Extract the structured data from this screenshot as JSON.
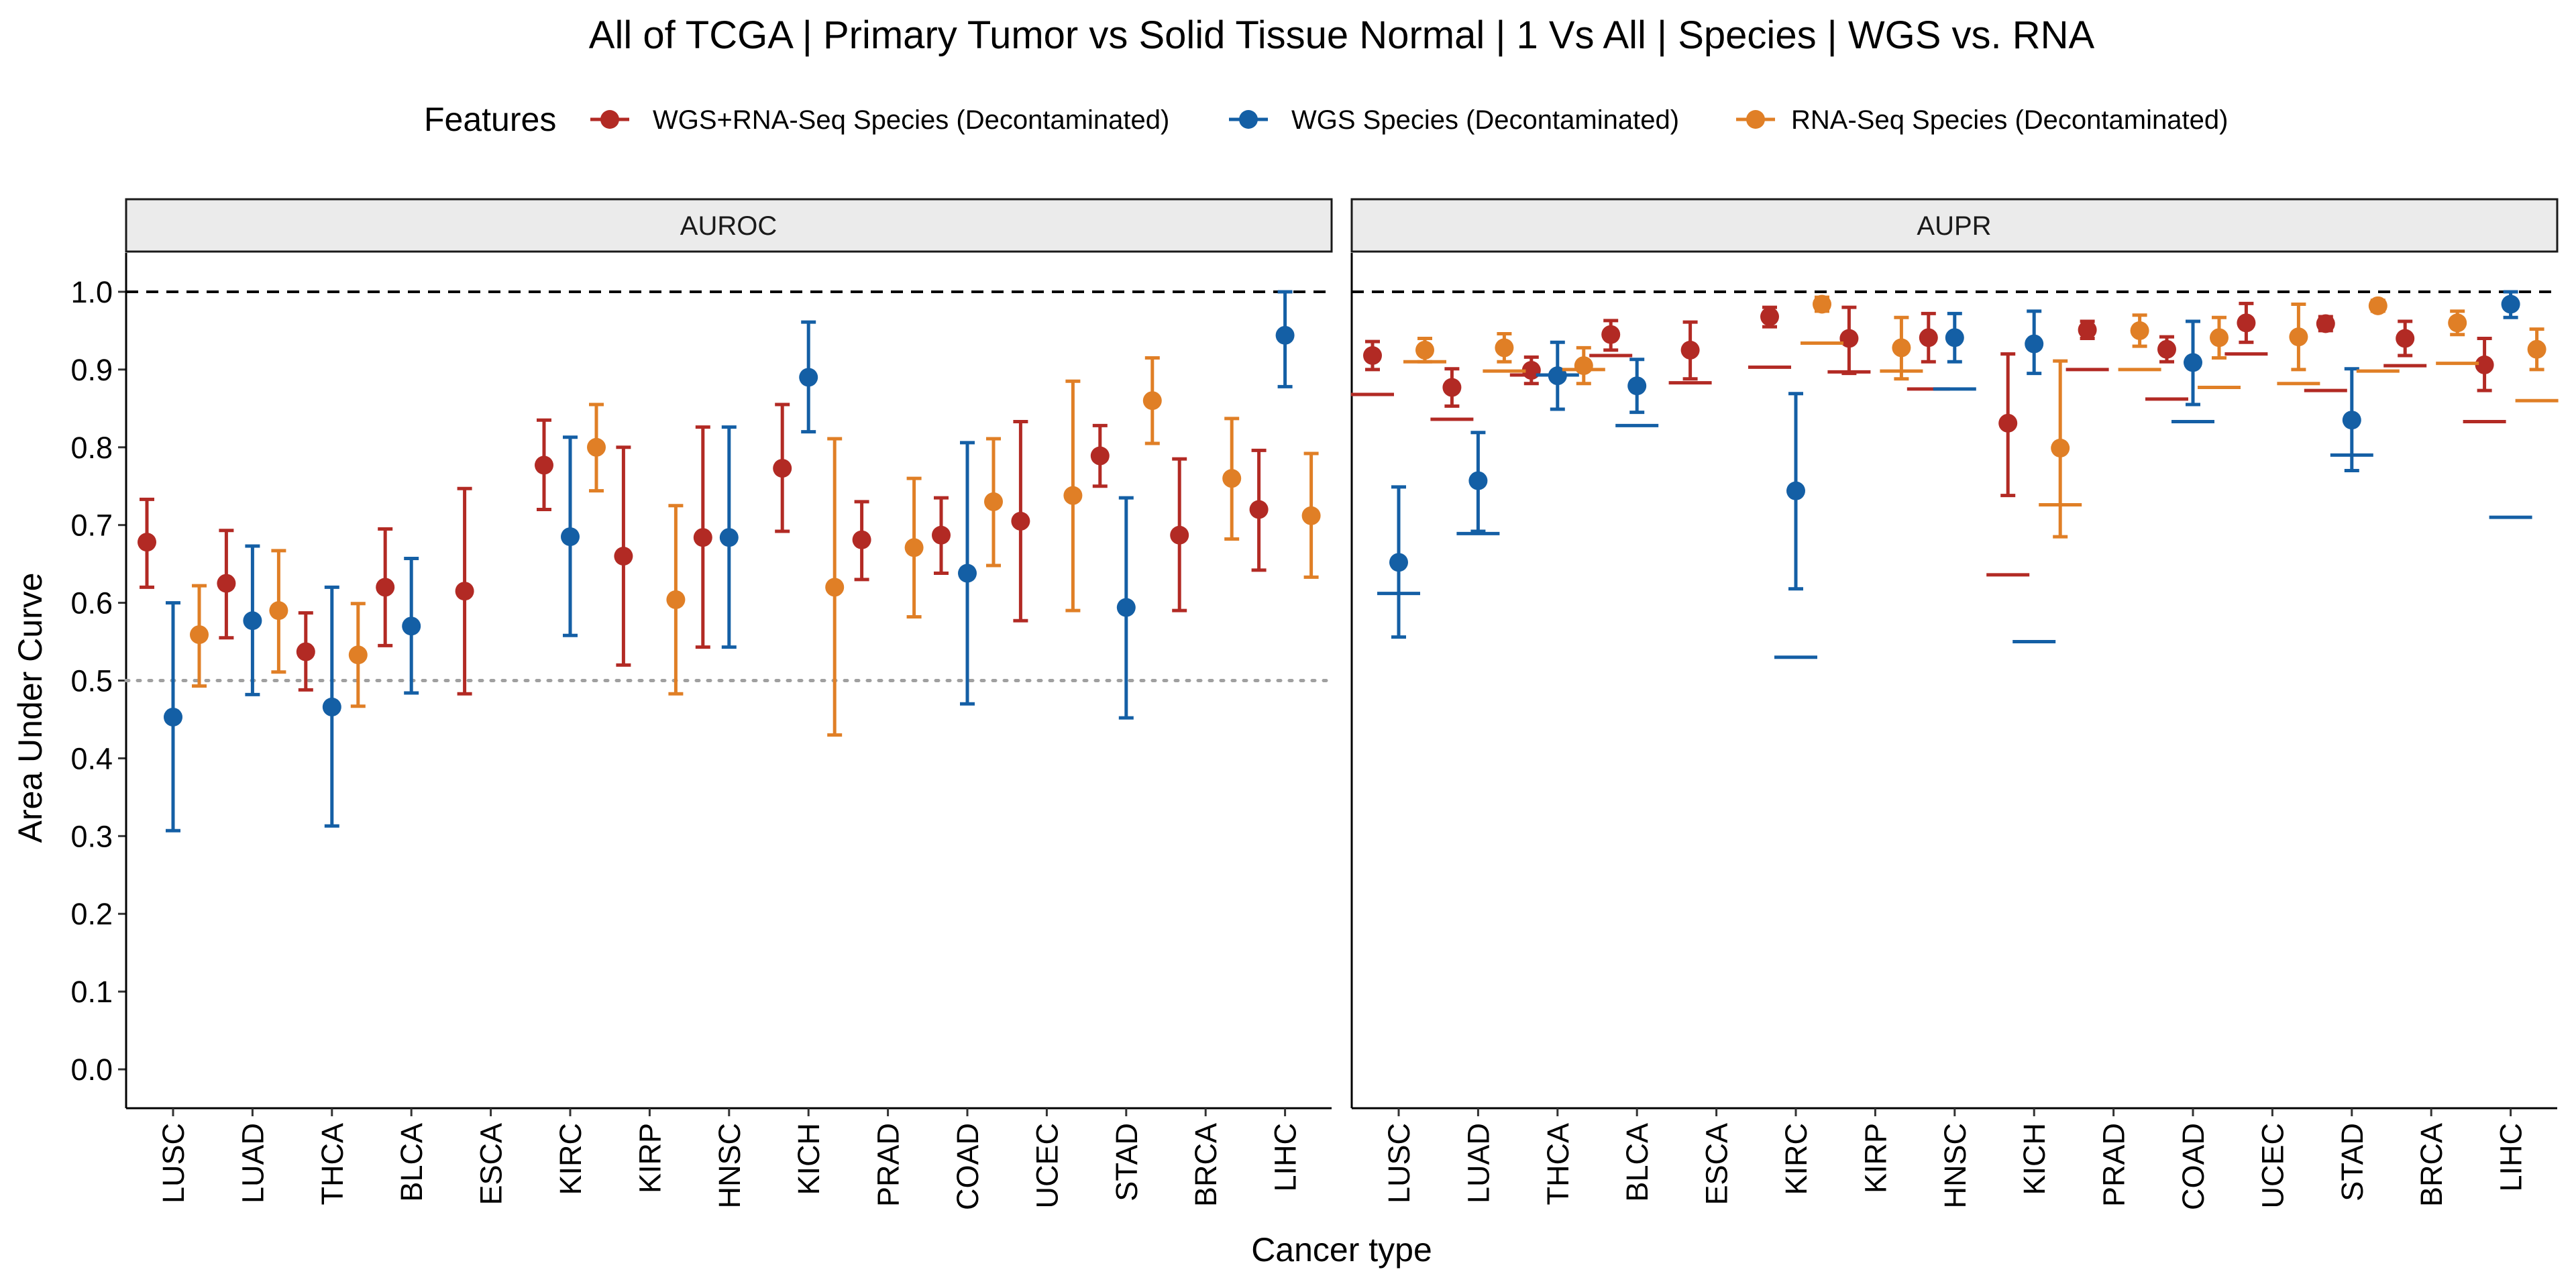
{
  "title": "All of TCGA | Primary Tumor vs Solid Tissue Normal | 1 Vs All | Species | WGS vs. RNA",
  "legend": {
    "title": "Features",
    "items": [
      {
        "label": "WGS+RNA-Seq Species (Decontaminated)",
        "color": "#b22a24"
      },
      {
        "label": "WGS Species (Decontaminated)",
        "color": "#145fa5"
      },
      {
        "label": "RNA-Seq Species (Decontaminated)",
        "color": "#e07f26"
      }
    ]
  },
  "chart_data": {
    "type": "scatter",
    "xlabel": "Cancer type",
    "ylabel": "Area Under Curve",
    "ylim": [
      -0.05,
      1.05
    ],
    "yticks": [
      "0.0",
      "0.1",
      "0.2",
      "0.3",
      "0.4",
      "0.5",
      "0.6",
      "0.7",
      "0.8",
      "0.9",
      "1.0"
    ],
    "categories": [
      "LUSC",
      "LUAD",
      "THCA",
      "BLCA",
      "ESCA",
      "KIRC",
      "KIRP",
      "HNSC",
      "KICH",
      "PRAD",
      "COAD",
      "UCEC",
      "STAD",
      "BRCA",
      "LIHC"
    ],
    "reference_lines": [
      {
        "panel": "both",
        "y": 1.0,
        "style": "dashed"
      },
      {
        "panel": "AUROC",
        "y": 0.5,
        "style": "dotted"
      }
    ],
    "panels": [
      {
        "name": "AUROC",
        "series": [
          {
            "name": "WGS+RNA-Seq Species (Decontaminated)",
            "color": "#b22a24",
            "values": [
              0.678,
              0.625,
              0.537,
              0.62,
              0.615,
              0.777,
              0.66,
              0.684,
              0.773,
              0.681,
              0.687,
              0.705,
              0.789,
              0.687,
              0.72
            ],
            "lower": [
              0.62,
              0.555,
              0.488,
              0.545,
              0.483,
              0.72,
              0.52,
              0.543,
              0.692,
              0.63,
              0.638,
              0.577,
              0.75,
              0.59,
              0.642
            ],
            "upper": [
              0.733,
              0.693,
              0.587,
              0.695,
              0.747,
              0.835,
              0.8,
              0.826,
              0.855,
              0.73,
              0.735,
              0.833,
              0.828,
              0.785,
              0.796
            ]
          },
          {
            "name": "WGS Species (Decontaminated)",
            "color": "#145fa5",
            "values": [
              0.453,
              0.577,
              0.466,
              0.57,
              null,
              0.685,
              null,
              0.684,
              0.89,
              null,
              0.638,
              null,
              0.594,
              null,
              0.944
            ],
            "lower": [
              0.307,
              0.482,
              0.313,
              0.484,
              null,
              0.558,
              null,
              0.543,
              0.82,
              null,
              0.47,
              null,
              0.452,
              null,
              0.878
            ],
            "upper": [
              0.6,
              0.673,
              0.62,
              0.657,
              null,
              0.813,
              null,
              0.826,
              0.961,
              null,
              0.806,
              null,
              0.735,
              null,
              1.0
            ]
          },
          {
            "name": "RNA-Seq Species (Decontaminated)",
            "color": "#e07f26",
            "values": [
              0.559,
              0.59,
              0.533,
              null,
              null,
              0.8,
              0.604,
              null,
              0.62,
              0.671,
              0.73,
              0.738,
              0.86,
              0.76,
              0.712
            ],
            "lower": [
              0.493,
              0.511,
              0.467,
              null,
              null,
              0.744,
              0.483,
              null,
              0.43,
              0.582,
              0.648,
              0.59,
              0.805,
              0.682,
              0.633
            ],
            "upper": [
              0.622,
              0.667,
              0.599,
              null,
              null,
              0.855,
              0.725,
              null,
              0.811,
              0.76,
              0.811,
              0.885,
              0.915,
              0.837,
              0.792
            ]
          }
        ]
      },
      {
        "name": "AUPR",
        "series": [
          {
            "name": "WGS+RNA-Seq Species (Decontaminated)",
            "color": "#b22a24",
            "values": [
              0.918,
              0.877,
              0.899,
              0.945,
              0.925,
              0.968,
              0.94,
              0.941,
              0.831,
              0.951,
              0.926,
              0.96,
              0.959,
              0.94,
              0.906
            ],
            "lower": [
              0.9,
              0.853,
              0.882,
              0.925,
              0.888,
              0.955,
              0.895,
              0.91,
              0.738,
              0.94,
              0.91,
              0.935,
              0.95,
              0.918,
              0.873
            ],
            "upper": [
              0.936,
              0.901,
              0.916,
              0.963,
              0.961,
              0.98,
              0.98,
              0.972,
              0.92,
              0.962,
              0.942,
              0.985,
              0.968,
              0.962,
              0.94
            ],
            "baseline": [
              0.868,
              0.836,
              0.893,
              0.918,
              0.883,
              0.903,
              0.897,
              0.875,
              0.636,
              0.9,
              0.862,
              0.92,
              0.873,
              0.905,
              0.833
            ]
          },
          {
            "name": "WGS Species (Decontaminated)",
            "color": "#145fa5",
            "values": [
              0.652,
              0.757,
              0.892,
              0.879,
              null,
              0.744,
              null,
              0.941,
              0.933,
              null,
              0.909,
              null,
              0.835,
              null,
              0.984
            ],
            "lower": [
              0.556,
              0.692,
              0.849,
              0.845,
              null,
              0.618,
              null,
              0.91,
              0.895,
              null,
              0.855,
              null,
              0.77,
              null,
              0.967
            ],
            "upper": [
              0.749,
              0.819,
              0.935,
              0.913,
              null,
              0.869,
              null,
              0.972,
              0.975,
              null,
              0.962,
              null,
              0.901,
              null,
              1.0
            ],
            "baseline": [
              0.612,
              0.689,
              0.893,
              0.828,
              null,
              0.53,
              null,
              0.875,
              0.55,
              null,
              0.833,
              null,
              0.79,
              null,
              0.71
            ]
          },
          {
            "name": "RNA-Seq Species (Decontaminated)",
            "color": "#e07f26",
            "values": [
              0.925,
              0.928,
              0.905,
              null,
              null,
              0.984,
              0.928,
              null,
              0.799,
              0.95,
              0.941,
              0.942,
              0.982,
              0.96,
              0.926
            ],
            "lower": [
              0.91,
              0.91,
              0.882,
              null,
              null,
              0.975,
              0.888,
              null,
              0.685,
              0.93,
              0.915,
              0.9,
              0.975,
              0.945,
              0.9
            ],
            "upper": [
              0.94,
              0.946,
              0.928,
              null,
              null,
              0.993,
              0.967,
              null,
              0.911,
              0.97,
              0.967,
              0.984,
              0.989,
              0.975,
              0.952
            ],
            "baseline": [
              0.91,
              0.898,
              0.9,
              null,
              null,
              0.934,
              0.898,
              null,
              0.726,
              0.9,
              0.877,
              0.882,
              0.898,
              0.908,
              0.86
            ]
          }
        ]
      }
    ]
  }
}
